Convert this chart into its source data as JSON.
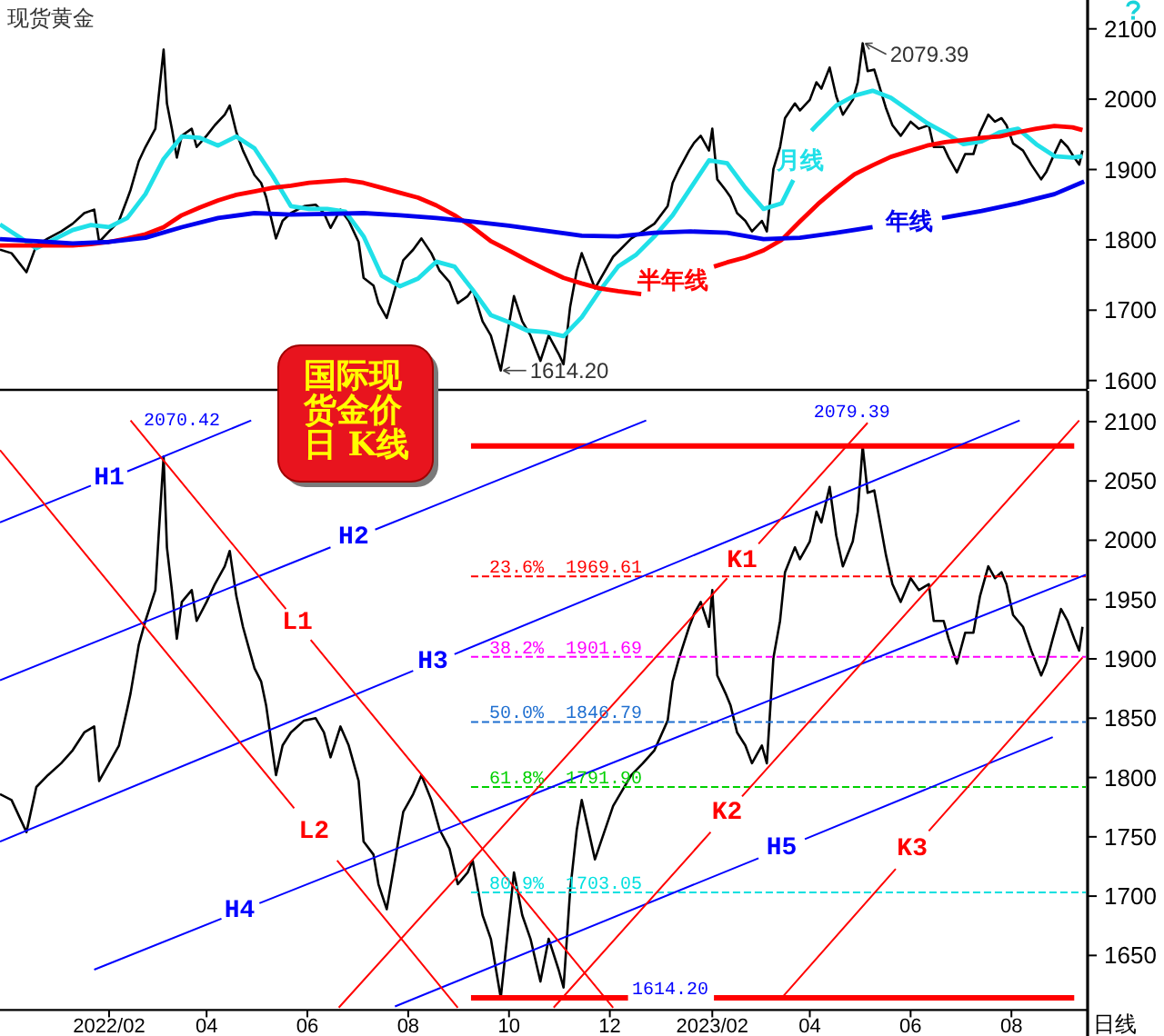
{
  "chart_data": [
    {
      "type": "line",
      "title": "现货黄金",
      "tick_labels": "y",
      "xlim": [
        "2021-11-27",
        "2023-09-15"
      ],
      "ylim": [
        1588,
        2141
      ],
      "yticks": [
        1600,
        1700,
        1800,
        1900,
        2000,
        2100
      ],
      "series": [
        {
          "color": "#000000",
          "x": [
            "2021-11-27",
            "2021-12-04",
            "2021-12-13",
            "2021-12-19",
            "2021-12-26",
            "2022-01-03",
            "2022-01-10",
            "2022-01-17",
            "2022-01-23",
            "2022-01-26",
            "2022-02-01",
            "2022-02-07",
            "2022-02-12",
            "2022-02-14",
            "2022-02-19",
            "2022-02-23",
            "2022-03-01",
            "2022-03-03",
            "2022-03-06",
            "2022-03-08",
            "2022-03-11",
            "2022-03-14",
            "2022-03-17",
            "2022-03-23",
            "2022-03-26",
            "2022-04-01",
            "2022-04-06",
            "2022-04-12",
            "2022-04-15",
            "2022-04-19",
            "2022-04-23",
            "2022-04-26",
            "2022-04-30",
            "2022-05-04",
            "2022-05-07",
            "2022-05-13",
            "2022-05-17",
            "2022-05-22",
            "2022-05-30",
            "2022-06-06",
            "2022-06-11",
            "2022-06-15",
            "2022-06-21",
            "2022-06-26",
            "2022-07-02",
            "2022-07-05",
            "2022-07-11",
            "2022-07-14",
            "2022-07-19",
            "2022-07-24",
            "2022-07-29",
            "2022-08-04",
            "2022-08-09",
            "2022-08-15",
            "2022-08-20",
            "2022-08-26",
            "2022-08-31",
            "2022-09-06",
            "2022-09-09",
            "2022-09-15",
            "2022-09-20",
            "2022-09-26",
            "2022-09-29",
            "2022-10-04",
            "2022-10-09",
            "2022-10-14",
            "2022-10-20",
            "2022-10-25",
            "2022-10-31",
            "2022-11-03",
            "2022-11-07",
            "2022-11-11",
            "2022-11-14",
            "2022-11-22",
            "2022-12-03",
            "2022-12-14",
            "2022-12-21",
            "2022-12-28",
            "2023-01-05",
            "2023-01-08",
            "2023-01-12",
            "2023-01-18",
            "2023-01-21",
            "2023-01-25",
            "2023-01-30",
            "2023-02-01",
            "2023-02-04",
            "2023-02-09",
            "2023-02-12",
            "2023-02-16",
            "2023-02-21",
            "2023-02-25",
            "2023-03-03",
            "2023-03-06",
            "2023-03-10",
            "2023-03-14",
            "2023-03-17",
            "2023-03-23",
            "2023-03-26",
            "2023-04-01",
            "2023-04-05",
            "2023-04-08",
            "2023-04-13",
            "2023-04-17",
            "2023-04-21",
            "2023-04-27",
            "2023-04-30",
            "2023-05-03",
            "2023-05-06",
            "2023-05-10",
            "2023-05-13",
            "2023-05-17",
            "2023-05-21",
            "2023-05-26",
            "2023-06-01",
            "2023-06-06",
            "2023-06-12",
            "2023-06-15",
            "2023-06-21",
            "2023-06-24",
            "2023-06-29",
            "2023-07-04",
            "2023-07-09",
            "2023-07-13",
            "2023-07-18",
            "2023-07-22",
            "2023-07-26",
            "2023-07-29",
            "2023-08-02",
            "2023-08-08",
            "2023-08-13",
            "2023-08-19",
            "2023-08-22",
            "2023-08-26",
            "2023-08-31",
            "2023-09-04",
            "2023-09-08",
            "2023-09-11",
            "2023-09-13"
          ],
          "values": [
            1786,
            1781,
            1754,
            1792,
            1802,
            1812,
            1823,
            1838,
            1843,
            1797,
            1812,
            1827,
            1858,
            1871,
            1912,
            1932,
            1958,
            2004,
            2070.42,
            1994,
            1958,
            1917,
            1948,
            1958,
            1932,
            1948,
            1963,
            1978,
            1991,
            1953,
            1927,
            1912,
            1892,
            1881,
            1861,
            1802,
            1827,
            1838,
            1848,
            1850,
            1838,
            1817,
            1843,
            1827,
            1797,
            1746,
            1735,
            1710,
            1689,
            1730,
            1771,
            1786,
            1802,
            1781,
            1756,
            1740,
            1710,
            1720,
            1730,
            1684,
            1664,
            1614.2,
            1654,
            1720,
            1684,
            1664,
            1628,
            1664,
            1638,
            1623,
            1705,
            1756,
            1781,
            1731,
            1776,
            1802,
            1812,
            1823,
            1848,
            1881,
            1901,
            1927,
            1938,
            1948,
            1927,
            1958,
            1886,
            1871,
            1861,
            1838,
            1827,
            1812,
            1827,
            1812,
            1901,
            1932,
            1973,
            1994,
            1984,
            1999,
            2024,
            2015,
            2045,
            2004,
            1978,
            1999,
            2024,
            2079.39,
            2040,
            2042,
            2019,
            1988,
            1963,
            1948,
            1968,
            1958,
            1963,
            1932,
            1932,
            1917,
            1896,
            1922,
            1922,
            1953,
            1978,
            1968,
            1973,
            1963,
            1937,
            1927,
            1907,
            1886,
            1896,
            1917,
            1942,
            1932,
            1917,
            1907,
            1927
          ]
        },
        {
          "name": "月线",
          "color": "#20e0e8",
          "x": [
            "2021-11-27",
            "2021-12-08",
            "2021-12-19",
            "2021-12-30",
            "2022-01-10",
            "2022-01-21",
            "2022-02-01",
            "2022-02-12",
            "2022-02-23",
            "2022-03-06",
            "2022-03-17",
            "2022-03-28",
            "2022-04-08",
            "2022-04-19",
            "2022-04-30",
            "2022-05-11",
            "2022-05-22",
            "2022-06-02",
            "2022-06-13",
            "2022-06-24",
            "2022-07-05",
            "2022-07-16",
            "2022-07-27",
            "2022-08-07",
            "2022-08-18",
            "2022-08-29",
            "2022-09-09",
            "2022-09-20",
            "2022-10-01",
            "2022-10-12",
            "2022-10-23",
            "2022-11-03",
            "2022-11-14",
            "2022-11-25",
            "2022-12-06",
            "2022-12-17",
            "2022-12-28",
            "2023-01-08",
            "2023-01-19",
            "2023-01-30",
            "2023-02-10",
            "2023-02-21",
            "2023-03-04",
            "2023-03-15",
            "2023-03-22",
            "2023-03-26",
            "2023-04-02",
            "2023-04-06",
            "2023-04-17",
            "2023-04-28",
            "2023-05-09",
            "2023-05-20",
            "2023-05-31",
            "2023-06-11",
            "2023-06-22",
            "2023-07-03",
            "2023-07-14",
            "2023-07-25",
            "2023-08-05",
            "2023-08-16",
            "2023-08-27",
            "2023-09-07",
            "2023-09-13"
          ],
          "values": [
            1822,
            1805,
            1788,
            1801,
            1814,
            1821,
            1818,
            1831,
            1865,
            1915,
            1947,
            1945,
            1934,
            1947,
            1930,
            1891,
            1848,
            1844,
            1844,
            1840,
            1805,
            1749,
            1734,
            1745,
            1769,
            1762,
            1729,
            1693,
            1683,
            1671,
            1669,
            1663,
            1690,
            1728,
            1762,
            1779,
            1805,
            1835,
            1874,
            1913,
            1909,
            1874,
            1844,
            1852,
            1885,
            null,
            1955,
            1965,
            1991,
            2005,
            2012,
            2002,
            1984,
            1966,
            1952,
            1936,
            1940,
            1953,
            1958,
            1936,
            1919,
            1917,
            1919
          ]
        },
        {
          "name": "半年线",
          "color": "#ff0000",
          "x": [
            "2021-11-27",
            "2021-12-08",
            "2021-12-19",
            "2021-12-30",
            "2022-01-10",
            "2022-01-21",
            "2022-02-01",
            "2022-02-12",
            "2022-02-23",
            "2022-03-06",
            "2022-03-17",
            "2022-03-28",
            "2022-04-08",
            "2022-04-19",
            "2022-04-30",
            "2022-05-11",
            "2022-05-22",
            "2022-06-02",
            "2022-06-13",
            "2022-06-24",
            "2022-07-05",
            "2022-07-16",
            "2022-07-27",
            "2022-08-07",
            "2022-08-18",
            "2022-08-29",
            "2022-09-09",
            "2022-09-20",
            "2022-10-01",
            "2022-10-12",
            "2022-10-23",
            "2022-11-03",
            "2022-11-14",
            "2022-11-25",
            "2022-12-06",
            "2022-12-20",
            "2023-01-08",
            "2023-02-02",
            "2023-02-10",
            "2023-02-21",
            "2023-03-04",
            "2023-03-15",
            "2023-03-26",
            "2023-04-06",
            "2023-04-17",
            "2023-04-28",
            "2023-05-09",
            "2023-05-20",
            "2023-05-31",
            "2023-06-11",
            "2023-06-22",
            "2023-07-03",
            "2023-07-14",
            "2023-07-25",
            "2023-08-05",
            "2023-08-16",
            "2023-08-27",
            "2023-09-07",
            "2023-09-13"
          ],
          "values": [
            1792,
            1792,
            1792,
            1792,
            1792,
            1794,
            1797,
            1802,
            1808,
            1818,
            1835,
            1846,
            1856,
            1864,
            1869,
            1874,
            1877,
            1881,
            1883,
            1885,
            1881,
            1874,
            1867,
            1860,
            1849,
            1835,
            1818,
            1798,
            1785,
            1771,
            1758,
            1746,
            1738,
            1731,
            1727,
            1723,
            null,
            1762,
            1768,
            1775,
            1785,
            1800,
            1826,
            1851,
            1873,
            1893,
            1906,
            1918,
            1926,
            1934,
            1939,
            1942,
            1945,
            1947,
            1953,
            1958,
            1962,
            1960,
            1956
          ]
        },
        {
          "name": "年线",
          "color": "#0000ee",
          "x": [
            "2021-11-27",
            "2021-12-19",
            "2022-01-10",
            "2022-02-01",
            "2022-02-23",
            "2022-03-17",
            "2022-04-08",
            "2022-04-30",
            "2022-05-22",
            "2022-06-13",
            "2022-07-05",
            "2022-07-27",
            "2022-08-18",
            "2022-09-09",
            "2022-10-01",
            "2022-10-23",
            "2022-11-14",
            "2022-12-06",
            "2022-12-28",
            "2023-01-19",
            "2023-02-10",
            "2023-03-04",
            "2023-03-26",
            "2023-04-17",
            "2023-05-09",
            "2023-05-31",
            "2023-06-20",
            "2023-07-14",
            "2023-08-05",
            "2023-08-27",
            "2023-09-14"
          ],
          "values": [
            1801,
            1798,
            1795,
            1797,
            1803,
            1818,
            1831,
            1838,
            1836,
            1837,
            1838,
            1835,
            1831,
            1826,
            1820,
            1813,
            1806,
            1805,
            1810,
            1812,
            1810,
            1801,
            1803,
            1810,
            1818,
            null,
            1831,
            1841,
            1852,
            1865,
            1883
          ]
        }
      ],
      "annotations": [
        {
          "text": "2079.39",
          "x": "2023-05-03",
          "y": 2079.39
        },
        {
          "text": "1614.20",
          "x": "2022-09-26",
          "y": 1614.2
        }
      ]
    },
    {
      "type": "line",
      "title": "国际现货金价日 K线",
      "xlabel": "日线",
      "xlim": [
        "2021-11-27",
        "2023-09-15"
      ],
      "xticks": [
        {
          "value": "2022-02-01",
          "label": "2022/02"
        },
        {
          "value": "2022-04-01",
          "label": "04"
        },
        {
          "value": "2022-06-01",
          "label": "06"
        },
        {
          "value": "2022-08-01",
          "label": "08"
        },
        {
          "value": "2022-10-01",
          "label": "10"
        },
        {
          "value": "2022-12-01",
          "label": "12"
        },
        {
          "value": "2023-02-01",
          "label": "2023/02"
        },
        {
          "value": "2023-04-01",
          "label": "04"
        },
        {
          "value": "2023-06-01",
          "label": "06"
        },
        {
          "value": "2023-08-01",
          "label": "08"
        }
      ],
      "ylim": [
        1604,
        2126
      ],
      "yticks": [
        1650,
        1700,
        1750,
        1800,
        1850,
        1900,
        1950,
        2000,
        2050,
        2100
      ],
      "series": [
        {
          "color": "#000000",
          "x": [
            "2021-11-27",
            "2021-12-04",
            "2021-12-13",
            "2021-12-19",
            "2021-12-26",
            "2022-01-03",
            "2022-01-10",
            "2022-01-17",
            "2022-01-23",
            "2022-01-26",
            "2022-02-01",
            "2022-02-07",
            "2022-02-12",
            "2022-02-14",
            "2022-02-19",
            "2022-02-23",
            "2022-03-01",
            "2022-03-03",
            "2022-03-06",
            "2022-03-08",
            "2022-03-11",
            "2022-03-14",
            "2022-03-17",
            "2022-03-23",
            "2022-03-26",
            "2022-04-01",
            "2022-04-06",
            "2022-04-12",
            "2022-04-15",
            "2022-04-19",
            "2022-04-23",
            "2022-04-26",
            "2022-04-30",
            "2022-05-04",
            "2022-05-07",
            "2022-05-13",
            "2022-05-17",
            "2022-05-22",
            "2022-05-30",
            "2022-06-06",
            "2022-06-11",
            "2022-06-15",
            "2022-06-21",
            "2022-06-26",
            "2022-07-02",
            "2022-07-05",
            "2022-07-11",
            "2022-07-14",
            "2022-07-19",
            "2022-07-24",
            "2022-07-29",
            "2022-08-04",
            "2022-08-09",
            "2022-08-15",
            "2022-08-20",
            "2022-08-26",
            "2022-08-31",
            "2022-09-06",
            "2022-09-09",
            "2022-09-15",
            "2022-09-20",
            "2022-09-26",
            "2022-09-29",
            "2022-10-04",
            "2022-10-09",
            "2022-10-14",
            "2022-10-20",
            "2022-10-25",
            "2022-10-31",
            "2022-11-03",
            "2022-11-07",
            "2022-11-11",
            "2022-11-14",
            "2022-11-22",
            "2022-12-03",
            "2022-12-14",
            "2022-12-21",
            "2022-12-28",
            "2023-01-05",
            "2023-01-08",
            "2023-01-12",
            "2023-01-18",
            "2023-01-21",
            "2023-01-25",
            "2023-01-30",
            "2023-02-01",
            "2023-02-04",
            "2023-02-09",
            "2023-02-12",
            "2023-02-16",
            "2023-02-21",
            "2023-02-25",
            "2023-03-03",
            "2023-03-06",
            "2023-03-10",
            "2023-03-14",
            "2023-03-17",
            "2023-03-23",
            "2023-03-26",
            "2023-04-01",
            "2023-04-05",
            "2023-04-08",
            "2023-04-13",
            "2023-04-17",
            "2023-04-21",
            "2023-04-27",
            "2023-04-30",
            "2023-05-03",
            "2023-05-06",
            "2023-05-10",
            "2023-05-13",
            "2023-05-17",
            "2023-05-21",
            "2023-05-26",
            "2023-06-01",
            "2023-06-06",
            "2023-06-12",
            "2023-06-15",
            "2023-06-21",
            "2023-06-24",
            "2023-06-29",
            "2023-07-04",
            "2023-07-09",
            "2023-07-13",
            "2023-07-18",
            "2023-07-22",
            "2023-07-26",
            "2023-07-29",
            "2023-08-02",
            "2023-08-08",
            "2023-08-13",
            "2023-08-19",
            "2023-08-22",
            "2023-08-26",
            "2023-08-31",
            "2023-09-04",
            "2023-09-08",
            "2023-09-11",
            "2023-09-13"
          ],
          "values": [
            1786,
            1781,
            1754,
            1792,
            1802,
            1812,
            1823,
            1838,
            1843,
            1797,
            1812,
            1827,
            1858,
            1871,
            1912,
            1932,
            1958,
            2004,
            2070.42,
            1994,
            1958,
            1917,
            1948,
            1958,
            1932,
            1948,
            1963,
            1978,
            1991,
            1953,
            1927,
            1912,
            1892,
            1881,
            1861,
            1802,
            1827,
            1838,
            1848,
            1850,
            1838,
            1817,
            1843,
            1827,
            1797,
            1746,
            1735,
            1710,
            1689,
            1730,
            1771,
            1786,
            1802,
            1781,
            1756,
            1740,
            1710,
            1720,
            1730,
            1684,
            1664,
            1614.2,
            1654,
            1720,
            1684,
            1664,
            1628,
            1664,
            1638,
            1623,
            1705,
            1756,
            1781,
            1731,
            1776,
            1802,
            1812,
            1823,
            1848,
            1881,
            1901,
            1927,
            1938,
            1948,
            1927,
            1958,
            1886,
            1871,
            1861,
            1838,
            1827,
            1812,
            1827,
            1812,
            1901,
            1932,
            1973,
            1994,
            1984,
            1999,
            2024,
            2015,
            2045,
            2004,
            1978,
            1999,
            2024,
            2079.39,
            2040,
            2042,
            2019,
            1988,
            1963,
            1948,
            1968,
            1958,
            1963,
            1932,
            1932,
            1917,
            1896,
            1922,
            1922,
            1953,
            1978,
            1968,
            1973,
            1963,
            1937,
            1927,
            1907,
            1886,
            1896,
            1917,
            1942,
            1932,
            1917,
            1907,
            1927
          ]
        },
        {
          "color": "#ff0000",
          "x": [
            "2022-09-08",
            "2023-09-08"
          ],
          "values": [
            2079.39,
            2079.39
          ]
        },
        {
          "color": "#ff0000",
          "x": [
            "2022-09-08",
            "2022-12-12"
          ],
          "values": [
            1614.2,
            1614.2
          ]
        },
        {
          "color": "#ff0000",
          "x": [
            "2023-02-02",
            "2023-09-08"
          ],
          "values": [
            1614.2,
            1614.2
          ]
        },
        {
          "name": "23.6%  1969.61",
          "color": "#ff0000",
          "line_style": "dashed",
          "x": [
            "2022-09-08",
            "2023-09-15"
          ],
          "values": [
            1969.61,
            1969.61
          ]
        },
        {
          "name": "38.2%  1901.69",
          "color": "#ff00ff",
          "line_style": "dashed",
          "x": [
            "2022-09-08",
            "2023-09-15"
          ],
          "values": [
            1901.69,
            1901.69
          ]
        },
        {
          "name": "50.0%  1846.79",
          "color": "#1f6fd0",
          "line_style": "dashed",
          "x": [
            "2022-09-08",
            "2023-09-15"
          ],
          "values": [
            1846.79,
            1846.79
          ]
        },
        {
          "name": "61.8%  1791.90",
          "color": "#00d000",
          "line_style": "dashed",
          "x": [
            "2022-09-08",
            "2023-09-15"
          ],
          "values": [
            1791.9,
            1791.9
          ]
        },
        {
          "name": "80.9%  1703.05",
          "color": "#00e0e0",
          "line_style": "dashed",
          "x": [
            "2022-09-08",
            "2023-09-15"
          ],
          "values": [
            1703.05,
            1703.05
          ]
        },
        {
          "name": "H1",
          "color": "#0000ff",
          "x": [
            "2021-11-27",
            "2022-01-21",
            "2022-02-01",
            "2022-02-12",
            "2022-04-28"
          ],
          "values": [
            2015,
            2046,
            null,
            2058,
            2101
          ]
        },
        {
          "name": "H2",
          "color": "#0000ff",
          "x": [
            "2021-11-27",
            "2022-06-15",
            "2022-06-29",
            "2022-07-12",
            "2022-12-23"
          ],
          "values": [
            1882,
            1994,
            null,
            2009,
            2101
          ]
        },
        {
          "name": "H3",
          "color": "#0000ff",
          "x": [
            "2021-11-27",
            "2022-08-04",
            "2022-08-16",
            "2022-08-29",
            "2023-08-06"
          ],
          "values": [
            1746,
            1890,
            null,
            1904,
            2101
          ]
        },
        {
          "name": "H4",
          "color": "#0000ff",
          "x": [
            "2022-01-23",
            "2022-04-10",
            "2022-04-21",
            "2022-05-03",
            "2023-09-15"
          ],
          "values": [
            1638,
            1681,
            null,
            1694,
            1971
          ]
        },
        {
          "name": "H5",
          "color": "#0000ff",
          "x": [
            "2022-07-24",
            "2023-03-01",
            "2023-03-15",
            "2023-03-29",
            "2023-08-26"
          ],
          "values": [
            1607,
            1732,
            null,
            1748,
            1834
          ]
        },
        {
          "name": "L1",
          "color": "#ff0000",
          "x": [
            "2022-02-14",
            "2022-05-19",
            "2022-05-26",
            "2022-06-03",
            "2022-12-03"
          ],
          "values": [
            2101,
            1942,
            null,
            1916,
            1606
          ]
        },
        {
          "name": "L2",
          "color": "#ff0000",
          "x": [
            "2021-11-27",
            "2022-05-24",
            "2022-06-05",
            "2022-06-19",
            "2022-08-31"
          ],
          "values": [
            2076,
            1774,
            null,
            1730,
            1606
          ]
        },
        {
          "name": "K1",
          "color": "#ff0000",
          "x": [
            "2022-06-20",
            "2023-02-10",
            "2023-02-19",
            "2023-03-01",
            "2023-05-06"
          ],
          "values": [
            1606,
            1968,
            null,
            1997,
            2099
          ]
        },
        {
          "name": "K2",
          "color": "#ff0000",
          "x": [
            "2022-10-28",
            "2023-01-31",
            "2023-02-10",
            "2023-02-19",
            "2023-09-11"
          ],
          "values": [
            1606,
            1754,
            null,
            1784,
            2101
          ]
        },
        {
          "name": "K3",
          "color": "#ff0000",
          "x": [
            "2023-03-15",
            "2023-05-23",
            "2023-06-02",
            "2023-06-12",
            "2023-09-13"
          ],
          "values": [
            1614.2,
            1723,
            null,
            1755,
            1901
          ]
        }
      ],
      "annotations": [
        {
          "text": "2070.42",
          "x": "2022-03-06",
          "y": 2070.42
        },
        {
          "text": "2079.39",
          "x": "2023-05-03",
          "y": 2079.39
        },
        {
          "text": "1614.20",
          "x": "2023-02-02",
          "y": 1614.2
        }
      ]
    }
  ]
}
